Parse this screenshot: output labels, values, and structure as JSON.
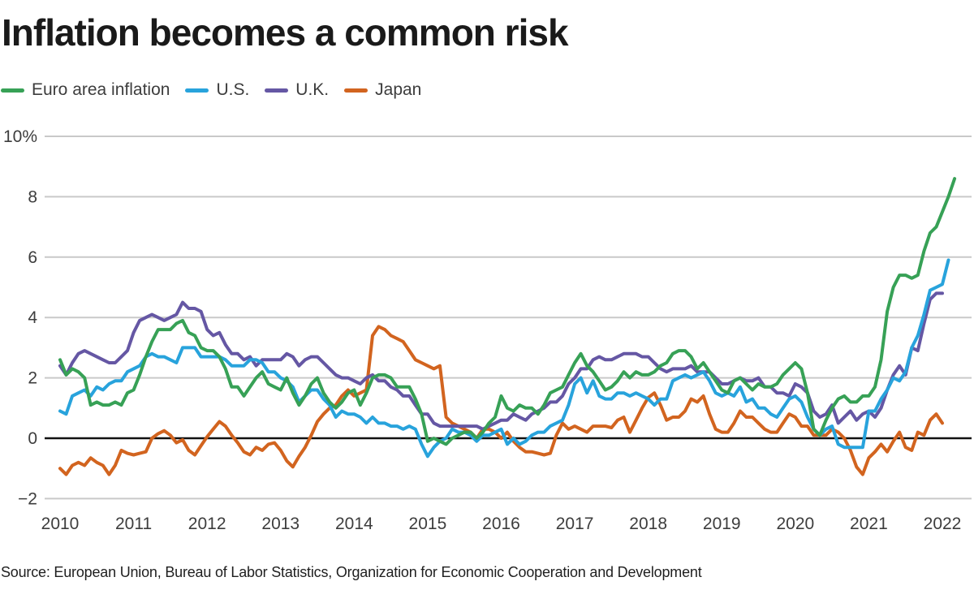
{
  "title": "Inflation becomes a common risk",
  "legend": {
    "items": [
      {
        "id": "euro",
        "label": "Euro area inflation"
      },
      {
        "id": "us",
        "label": "U.S."
      },
      {
        "id": "uk",
        "label": "U.K."
      },
      {
        "id": "japan",
        "label": "Japan"
      }
    ]
  },
  "source": "Source: European Union, Bureau of Labor Statistics, Organization for Economic Cooperation and Development",
  "chart_data": {
    "type": "line",
    "title": "Inflation becomes a common risk",
    "x_start": "2010-01",
    "x_interval": "month",
    "x_ticks": [
      "2010",
      "2011",
      "2012",
      "2013",
      "2014",
      "2015",
      "2016",
      "2017",
      "2018",
      "2019",
      "2020",
      "2021",
      "2022"
    ],
    "y_ticks": [
      {
        "value": 10,
        "label": "10%"
      },
      {
        "value": 8,
        "label": "8"
      },
      {
        "value": 6,
        "label": "6"
      },
      {
        "value": 4,
        "label": "4"
      },
      {
        "value": 2,
        "label": "2"
      },
      {
        "value": 0,
        "label": "0"
      },
      {
        "value": -2,
        "label": "−2"
      }
    ],
    "ylim": [
      -2,
      10
    ],
    "grid": "horizontal",
    "legend_position": "top-left",
    "unit": "percent, year-over-year",
    "series": [
      {
        "id": "japan",
        "name": "Japan",
        "color": "#d2641f",
        "values": [
          -1.0,
          -1.2,
          -0.9,
          -0.8,
          -0.9,
          -0.65,
          -0.8,
          -0.9,
          -1.2,
          -0.9,
          -0.4,
          -0.5,
          -0.55,
          -0.5,
          -0.45,
          0.0,
          0.15,
          0.25,
          0.1,
          -0.15,
          -0.05,
          -0.4,
          -0.55,
          -0.25,
          0.05,
          0.3,
          0.55,
          0.4,
          0.1,
          -0.15,
          -0.45,
          -0.55,
          -0.3,
          -0.4,
          -0.2,
          -0.15,
          -0.4,
          -0.75,
          -0.95,
          -0.6,
          -0.3,
          0.1,
          0.55,
          0.8,
          1.0,
          1.1,
          1.4,
          1.6,
          1.4,
          1.5,
          1.6,
          3.4,
          3.7,
          3.6,
          3.4,
          3.3,
          3.2,
          2.9,
          2.6,
          2.5,
          2.4,
          2.3,
          2.4,
          0.7,
          0.5,
          0.4,
          0.3,
          0.2,
          0.0,
          0.3,
          0.3,
          0.2,
          0.0,
          0.2,
          -0.1,
          -0.3,
          -0.45,
          -0.45,
          -0.5,
          -0.55,
          -0.5,
          0.1,
          0.5,
          0.3,
          0.4,
          0.3,
          0.2,
          0.4,
          0.4,
          0.4,
          0.35,
          0.6,
          0.7,
          0.2,
          0.6,
          1.0,
          1.35,
          1.5,
          1.1,
          0.6,
          0.7,
          0.7,
          0.9,
          1.3,
          1.2,
          1.4,
          0.8,
          0.3,
          0.2,
          0.2,
          0.5,
          0.9,
          0.7,
          0.7,
          0.5,
          0.3,
          0.2,
          0.2,
          0.5,
          0.8,
          0.7,
          0.4,
          0.4,
          0.1,
          0.1,
          0.1,
          0.3,
          0.2,
          0.0,
          -0.4,
          -0.95,
          -1.2,
          -0.65,
          -0.45,
          -0.2,
          -0.45,
          -0.1,
          0.2,
          -0.3,
          -0.4,
          0.2,
          0.1,
          0.6,
          0.8,
          0.5
        ]
      },
      {
        "id": "uk",
        "name": "U.K.",
        "color": "#6557a4",
        "values": [
          2.4,
          2.1,
          2.5,
          2.8,
          2.9,
          2.8,
          2.7,
          2.6,
          2.5,
          2.5,
          2.7,
          2.9,
          3.5,
          3.9,
          4.0,
          4.1,
          4.0,
          3.9,
          4.0,
          4.1,
          4.5,
          4.3,
          4.3,
          4.2,
          3.6,
          3.4,
          3.5,
          3.1,
          2.8,
          2.8,
          2.6,
          2.7,
          2.4,
          2.6,
          2.6,
          2.6,
          2.6,
          2.8,
          2.7,
          2.4,
          2.6,
          2.7,
          2.7,
          2.5,
          2.3,
          2.1,
          2.0,
          2.0,
          1.9,
          1.8,
          2.0,
          2.1,
          1.9,
          1.9,
          1.7,
          1.6,
          1.4,
          1.4,
          1.1,
          0.8,
          0.8,
          0.5,
          0.4,
          0.4,
          0.4,
          0.4,
          0.4,
          0.4,
          0.4,
          0.3,
          0.4,
          0.5,
          0.6,
          0.6,
          0.8,
          0.7,
          0.6,
          0.8,
          0.9,
          1.0,
          1.2,
          1.2,
          1.4,
          1.8,
          2.0,
          2.3,
          2.3,
          2.6,
          2.7,
          2.6,
          2.6,
          2.7,
          2.8,
          2.8,
          2.8,
          2.7,
          2.7,
          2.5,
          2.3,
          2.2,
          2.3,
          2.3,
          2.3,
          2.4,
          2.2,
          2.2,
          2.2,
          2.0,
          1.8,
          1.8,
          1.9,
          2.0,
          1.9,
          1.9,
          2.0,
          1.7,
          1.7,
          1.5,
          1.5,
          1.4,
          1.8,
          1.7,
          1.5,
          0.9,
          0.7,
          0.8,
          1.1,
          0.5,
          0.7,
          0.9,
          0.6,
          0.8,
          0.9,
          0.7,
          1.0,
          1.6,
          2.1,
          2.4,
          2.1,
          3.0,
          2.9,
          3.8,
          4.6,
          4.8,
          4.8
        ]
      },
      {
        "id": "us",
        "name": "U.S.",
        "color": "#28a3dc",
        "values": [
          0.9,
          0.8,
          1.4,
          1.5,
          1.6,
          1.4,
          1.7,
          1.6,
          1.8,
          1.9,
          1.9,
          2.2,
          2.3,
          2.4,
          2.7,
          2.8,
          2.7,
          2.7,
          2.6,
          2.5,
          3.0,
          3.0,
          3.0,
          2.7,
          2.7,
          2.7,
          2.7,
          2.6,
          2.4,
          2.4,
          2.4,
          2.6,
          2.6,
          2.5,
          2.2,
          2.2,
          2.0,
          1.9,
          1.7,
          1.2,
          1.4,
          1.6,
          1.6,
          1.3,
          1.1,
          0.7,
          0.9,
          0.8,
          0.8,
          0.7,
          0.5,
          0.7,
          0.5,
          0.5,
          0.4,
          0.4,
          0.3,
          0.4,
          0.3,
          -0.2,
          -0.6,
          -0.3,
          -0.1,
          0.0,
          0.3,
          0.2,
          0.2,
          0.1,
          -0.1,
          0.1,
          0.1,
          0.2,
          0.3,
          -0.2,
          0.0,
          -0.2,
          -0.1,
          0.1,
          0.2,
          0.2,
          0.4,
          0.5,
          0.6,
          1.1,
          1.8,
          2.0,
          1.5,
          1.9,
          1.4,
          1.3,
          1.3,
          1.5,
          1.5,
          1.4,
          1.5,
          1.4,
          1.3,
          1.1,
          1.3,
          1.3,
          1.9,
          2.0,
          2.1,
          2.0,
          2.1,
          2.2,
          1.9,
          1.5,
          1.4,
          1.5,
          1.4,
          1.7,
          1.2,
          1.3,
          1.0,
          1.0,
          0.8,
          0.7,
          1.0,
          1.3,
          1.4,
          1.2,
          0.7,
          0.3,
          0.1,
          0.3,
          0.4,
          -0.2,
          -0.3,
          -0.3,
          -0.3,
          -0.3,
          0.9,
          0.9,
          1.3,
          1.6,
          2.0,
          1.9,
          2.2,
          3.0,
          3.4,
          4.1,
          4.9,
          5.0,
          5.1,
          5.9
        ]
      },
      {
        "id": "euro",
        "name": "Euro area inflation",
        "color": "#37a156",
        "values": [
          2.6,
          2.1,
          2.3,
          2.2,
          2.0,
          1.1,
          1.2,
          1.1,
          1.1,
          1.2,
          1.1,
          1.5,
          1.6,
          2.1,
          2.7,
          3.2,
          3.6,
          3.6,
          3.6,
          3.8,
          3.9,
          3.5,
          3.4,
          3.0,
          2.9,
          2.9,
          2.7,
          2.3,
          1.7,
          1.7,
          1.4,
          1.7,
          2.0,
          2.2,
          1.8,
          1.7,
          1.6,
          2.0,
          1.5,
          1.1,
          1.4,
          1.8,
          2.0,
          1.5,
          1.2,
          1.0,
          1.2,
          1.5,
          1.6,
          1.1,
          1.5,
          2.0,
          2.1,
          2.1,
          2.0,
          1.7,
          1.7,
          1.7,
          1.3,
          0.8,
          -0.1,
          0.0,
          -0.1,
          -0.2,
          0.0,
          0.1,
          0.2,
          0.2,
          0.0,
          0.2,
          0.5,
          0.7,
          1.4,
          1.0,
          0.9,
          1.1,
          1.0,
          1.0,
          0.8,
          1.1,
          1.5,
          1.6,
          1.7,
          2.1,
          2.5,
          2.8,
          2.4,
          2.2,
          1.9,
          1.6,
          1.7,
          1.9,
          2.2,
          2.0,
          2.2,
          2.1,
          2.1,
          2.2,
          2.4,
          2.5,
          2.8,
          2.9,
          2.9,
          2.7,
          2.3,
          2.5,
          2.2,
          1.9,
          1.6,
          1.5,
          1.9,
          2.0,
          1.8,
          1.6,
          1.8,
          1.7,
          1.7,
          1.8,
          2.1,
          2.3,
          2.5,
          2.3,
          1.5,
          0.3,
          0.1,
          0.6,
          1.0,
          1.3,
          1.4,
          1.2,
          1.2,
          1.4,
          1.4,
          1.7,
          2.6,
          4.2,
          5.0,
          5.4,
          5.4,
          5.3,
          5.4,
          6.2,
          6.8,
          7.0,
          7.5,
          8.0,
          8.6
        ]
      }
    ]
  }
}
